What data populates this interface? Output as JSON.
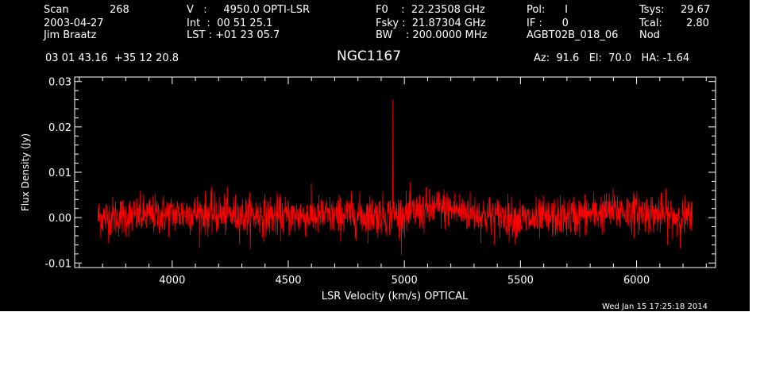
{
  "header": {
    "scan_label": "Scan",
    "scan_number": "268",
    "date": "2003-04-27",
    "observer": "Jim Braatz",
    "velocity": "V   :     4950.0 OPTI-LSR",
    "int_time": "Int  :  00 51 25.1",
    "lst": "LST : +01 23 05.7",
    "f0": "F0    :  22.23508 GHz",
    "fsky": "Fsky :  21.87304 GHz",
    "bw": "BW    : 200.0000 MHz",
    "pol": "Pol:      I",
    "if": "IF :      0",
    "project": "AGBT02B_018_06",
    "tsys_label": "Tsys:",
    "tsys_value": "29.67",
    "tcal_label": "Tcal:",
    "tcal_value": "2.80",
    "proc": "Nod",
    "coords": "03 01 43.16  +35 12 20.8",
    "source": "NGC1167",
    "az_el_ha": "Az:  91.6   El:  70.0   HA: -1.64"
  },
  "footer": {
    "timestamp": "Wed Jan 15 17:25:18 2014"
  },
  "colors": {
    "background": "#000000",
    "axes": "#ffffff",
    "trace": "#ff0000"
  },
  "chart_data": {
    "type": "line",
    "xlabel": "LSR Velocity (km/s) OPTICAL",
    "ylabel": "Flux Density (Jy)",
    "xlim": [
      3580,
      6340
    ],
    "ylim": [
      -0.011,
      0.031
    ],
    "x_ticks": [
      4000,
      4500,
      5000,
      5500,
      6000
    ],
    "y_ticks": [
      -0.01,
      0.0,
      0.01,
      0.02,
      0.03
    ],
    "y_tick_labels": [
      "-0.01",
      "0.00",
      "0.01",
      "0.02",
      "0.03"
    ],
    "grid": false,
    "series": [
      {
        "x_range": [
          3680,
          6240
        ],
        "noise_rms": 0.0022,
        "baseline": [
          [
            3680,
            0.0
          ],
          [
            3900,
            0.0005
          ],
          [
            4100,
            0.001
          ],
          [
            4300,
            0.0005
          ],
          [
            4500,
            0.0003
          ],
          [
            4800,
            0.0005
          ],
          [
            5000,
            0.0006
          ],
          [
            5150,
            0.0022
          ],
          [
            5350,
            0.0005
          ],
          [
            5550,
            -0.0005
          ],
          [
            5700,
            0.0002
          ],
          [
            5900,
            0.0015
          ],
          [
            6100,
            0.0008
          ],
          [
            6240,
            -0.0003
          ]
        ],
        "spike": {
          "x": 4950,
          "y": 0.026
        }
      }
    ]
  }
}
